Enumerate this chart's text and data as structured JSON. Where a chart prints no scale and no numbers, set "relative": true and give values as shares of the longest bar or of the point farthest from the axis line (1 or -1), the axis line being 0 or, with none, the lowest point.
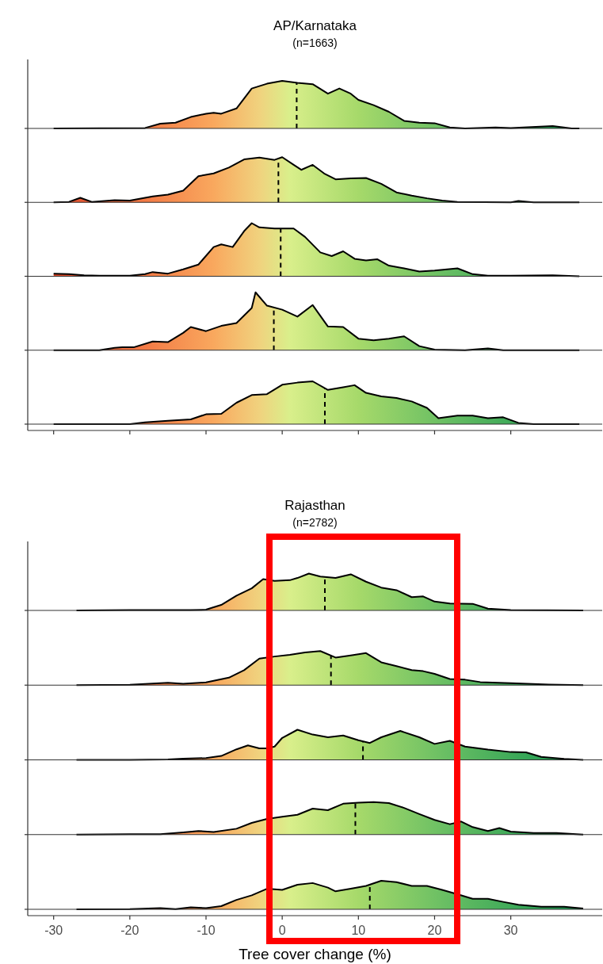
{
  "chart_data": [
    {
      "type": "area",
      "title": "AP/Karnataka",
      "subtitle": "(n=1663)",
      "relative": true,
      "tick_labels": false,
      "xlim": [
        -33.4,
        42
      ],
      "x": [
        -30,
        -18,
        -16,
        -14,
        -12,
        -10,
        -9,
        -8,
        -6,
        -4,
        -2,
        0,
        2,
        4,
        6,
        7.5,
        9,
        10,
        12,
        14,
        16,
        18,
        20,
        22,
        24,
        28,
        30,
        35.5,
        38,
        39
      ],
      "values": [
        0,
        0.01,
        0.1,
        0.12,
        0.24,
        0.31,
        0.33,
        0.31,
        0.42,
        0.84,
        0.94,
        1,
        0.96,
        0.93,
        0.73,
        0.84,
        0.73,
        0.6,
        0.49,
        0.35,
        0.16,
        0.12,
        0.11,
        0.02,
        0,
        0.02,
        0.01,
        0.05,
        0,
        0
      ],
      "ref_lines": [
        {
          "axis": "x",
          "value": 1.9,
          "line_style": "dashed"
        }
      ]
    },
    {
      "type": "area",
      "relative": true,
      "tick_labels": false,
      "xlim": [
        -33.4,
        42
      ],
      "x": [
        -30,
        -28,
        -26.5,
        -25,
        -22,
        -20,
        -17,
        -15,
        -13,
        -11,
        -9,
        -7,
        -5,
        -3,
        -1,
        0,
        1.5,
        2.5,
        4,
        5.5,
        7,
        9,
        11,
        13,
        15,
        17,
        19,
        21,
        23,
        30,
        31,
        33,
        39
      ],
      "values": [
        0,
        0.01,
        0.1,
        0.01,
        0.05,
        0.04,
        0.13,
        0.17,
        0.26,
        0.58,
        0.64,
        0.77,
        0.95,
        0.99,
        0.94,
        1,
        0.83,
        0.72,
        0.83,
        0.64,
        0.51,
        0.53,
        0.54,
        0.41,
        0.22,
        0.15,
        0.09,
        0.04,
        0.01,
        0,
        0.03,
        0,
        0
      ],
      "ref_lines": [
        {
          "axis": "x",
          "value": -0.5,
          "line_style": "dashed"
        }
      ]
    },
    {
      "type": "area",
      "relative": true,
      "tick_labels": false,
      "xlim": [
        -33.4,
        42
      ],
      "x": [
        -30,
        -28,
        -26,
        -24,
        -20,
        -18,
        -17,
        -15,
        -13,
        -11,
        -9,
        -8,
        -6.5,
        -5,
        -4,
        -3,
        -1,
        1.5,
        3,
        5,
        6.5,
        8,
        9.5,
        11,
        12.5,
        14,
        16,
        18,
        20,
        23,
        25,
        27,
        30,
        35.5,
        39
      ],
      "values": [
        0.05,
        0.04,
        0.02,
        0.01,
        0.01,
        0.04,
        0.08,
        0.05,
        0.13,
        0.22,
        0.55,
        0.6,
        0.55,
        0.85,
        1,
        0.92,
        0.9,
        0.9,
        0.74,
        0.45,
        0.38,
        0.47,
        0.33,
        0.3,
        0.32,
        0.2,
        0.15,
        0.09,
        0.11,
        0.15,
        0.04,
        0.01,
        0.01,
        0.02,
        0
      ],
      "ref_lines": [
        {
          "axis": "x",
          "value": -0.2,
          "line_style": "dashed"
        }
      ]
    },
    {
      "type": "area",
      "relative": true,
      "tick_labels": false,
      "xlim": [
        -33.4,
        42
      ],
      "x": [
        -30,
        -24,
        -22,
        -21,
        -19.5,
        -17,
        -15,
        -13,
        -12,
        -10,
        -8,
        -6,
        -4,
        -3.5,
        -2,
        0,
        2,
        4,
        6,
        8,
        10,
        12,
        14,
        16,
        18,
        20,
        24,
        27,
        29,
        39
      ],
      "values": [
        0,
        0,
        0.04,
        0.05,
        0.05,
        0.15,
        0.14,
        0.3,
        0.4,
        0.33,
        0.42,
        0.47,
        0.73,
        1,
        0.77,
        0.7,
        0.58,
        0.78,
        0.41,
        0.4,
        0.2,
        0.17,
        0.2,
        0.24,
        0.07,
        0.01,
        0,
        0.03,
        0,
        0
      ],
      "ref_lines": [
        {
          "axis": "x",
          "value": -1.1,
          "line_style": "dashed"
        }
      ]
    },
    {
      "type": "area",
      "relative": true,
      "tick_labels": false,
      "xlim": [
        -33.4,
        42
      ],
      "xticks": [
        {
          "value": -30,
          "label": null
        },
        {
          "value": -20,
          "label": null
        },
        {
          "value": -10,
          "label": null
        },
        {
          "value": 0,
          "label": null
        },
        {
          "value": 10,
          "label": null
        },
        {
          "value": 20,
          "label": null
        },
        {
          "value": 30,
          "label": null
        }
      ],
      "x": [
        -30,
        -20,
        -18,
        -15,
        -12,
        -10,
        -8,
        -6,
        -4,
        -2,
        0,
        2,
        4,
        6,
        8,
        9.5,
        11,
        13,
        15,
        17,
        19,
        20.5,
        23,
        25,
        27,
        29,
        31,
        33,
        39
      ],
      "values": [
        0,
        0,
        0.04,
        0.08,
        0.11,
        0.23,
        0.24,
        0.5,
        0.68,
        0.7,
        0.92,
        0.97,
        1,
        0.8,
        0.86,
        0.91,
        0.73,
        0.65,
        0.61,
        0.53,
        0.38,
        0.14,
        0.2,
        0.2,
        0.14,
        0.16,
        0.03,
        0,
        0
      ],
      "ref_lines": [
        {
          "axis": "x",
          "value": 5.6,
          "line_style": "dashed"
        }
      ]
    },
    {
      "type": "area",
      "title": "Rajasthan",
      "subtitle": "(n=2782)",
      "relative": true,
      "tick_labels": false,
      "xlim": [
        -33.4,
        42
      ],
      "x": [
        -27,
        -20,
        -15,
        -12,
        -10,
        -8,
        -6,
        -4,
        -2.5,
        -1,
        1,
        2,
        3.5,
        5,
        7,
        9,
        11,
        13,
        15,
        17,
        18.5,
        20,
        22,
        25,
        27,
        30,
        39.5
      ],
      "values": [
        0,
        0.01,
        0.01,
        0.01,
        0.02,
        0.15,
        0.4,
        0.6,
        0.85,
        0.8,
        0.82,
        0.88,
        1,
        0.92,
        0.88,
        0.98,
        0.78,
        0.62,
        0.55,
        0.36,
        0.38,
        0.24,
        0.19,
        0.18,
        0.05,
        0.01,
        0
      ],
      "ref_lines": [
        {
          "axis": "x",
          "value": 5.6,
          "line_style": "dashed"
        }
      ]
    },
    {
      "type": "area",
      "relative": true,
      "tick_labels": false,
      "xlim": [
        -33.4,
        42
      ],
      "x": [
        -27,
        -20,
        -15,
        -13,
        -10,
        -7,
        -5,
        -3,
        -1,
        1,
        3,
        5,
        7,
        9,
        11,
        13,
        15,
        17,
        18.5,
        20,
        22,
        24,
        26,
        30,
        35,
        39.5
      ],
      "values": [
        0,
        0.01,
        0.07,
        0.04,
        0.08,
        0.22,
        0.44,
        0.78,
        0.84,
        0.89,
        0.96,
        1,
        0.81,
        0.87,
        0.94,
        0.67,
        0.56,
        0.44,
        0.41,
        0.33,
        0.18,
        0.16,
        0.09,
        0.06,
        0.02,
        0
      ],
      "ref_lines": [
        {
          "axis": "x",
          "value": 6.4,
          "line_style": "dashed"
        }
      ]
    },
    {
      "type": "area",
      "relative": true,
      "tick_labels": false,
      "xlim": [
        -33.4,
        42
      ],
      "x": [
        -27,
        -20,
        -15,
        -13,
        -10,
        -8,
        -6,
        -4.5,
        -3,
        -2,
        -1,
        0,
        2,
        4,
        6,
        8,
        10,
        11.5,
        13,
        15.5,
        18,
        20,
        22,
        24,
        27,
        30,
        32,
        34,
        37,
        39.5
      ],
      "values": [
        0,
        0,
        0.01,
        0.04,
        0.06,
        0.13,
        0.35,
        0.48,
        0.38,
        0.38,
        0.44,
        0.73,
        1,
        0.84,
        0.75,
        0.81,
        0.65,
        0.56,
        0.75,
        0.96,
        0.75,
        0.53,
        0.63,
        0.44,
        0.34,
        0.26,
        0.25,
        0.1,
        0.03,
        0
      ],
      "ref_lines": [
        {
          "axis": "x",
          "value": 10.6,
          "line_style": "dashed"
        }
      ]
    },
    {
      "type": "area",
      "relative": true,
      "tick_labels": false,
      "xlim": [
        -33.4,
        42
      ],
      "x": [
        -27,
        -20,
        -16,
        -13,
        -11,
        -9,
        -6,
        -4,
        -2,
        0,
        2,
        4,
        6,
        8,
        10,
        12,
        14,
        16,
        18,
        20,
        22,
        23.5,
        25,
        27,
        28.5,
        30,
        33,
        36,
        39.5
      ],
      "values": [
        0,
        0.01,
        0.01,
        0.07,
        0.11,
        0.08,
        0.18,
        0.36,
        0.48,
        0.55,
        0.61,
        0.8,
        0.75,
        0.95,
        0.98,
        1,
        0.97,
        0.82,
        0.63,
        0.45,
        0.32,
        0.4,
        0.23,
        0.11,
        0.2,
        0.09,
        0.05,
        0.05,
        0
      ],
      "ref_lines": [
        {
          "axis": "x",
          "value": 9.6,
          "line_style": "dashed"
        }
      ]
    },
    {
      "type": "area",
      "xlabel": "Tree cover change (%)",
      "relative": true,
      "tick_labels": "x",
      "xlim": [
        -33.4,
        42
      ],
      "xticks": [
        -30,
        -20,
        -10,
        0,
        10,
        20,
        30
      ],
      "x": [
        -27,
        -20,
        -16,
        -14,
        -12,
        -10,
        -8,
        -6,
        -4,
        -2,
        0,
        2,
        4,
        6,
        7,
        9,
        11,
        13,
        15,
        17,
        19,
        21,
        23,
        25,
        27,
        29,
        31,
        34,
        37,
        39.5
      ],
      "values": [
        0,
        0.01,
        0.04,
        0.01,
        0.07,
        0.04,
        0.11,
        0.33,
        0.49,
        0.72,
        0.68,
        0.86,
        0.92,
        0.76,
        0.63,
        0.72,
        0.82,
        1,
        0.95,
        0.82,
        0.82,
        0.68,
        0.53,
        0.37,
        0.37,
        0.26,
        0.16,
        0.09,
        0.09,
        0.03
      ],
      "ref_lines": [
        {
          "axis": "x",
          "value": 11.5,
          "line_style": "dashed"
        }
      ]
    }
  ]
}
